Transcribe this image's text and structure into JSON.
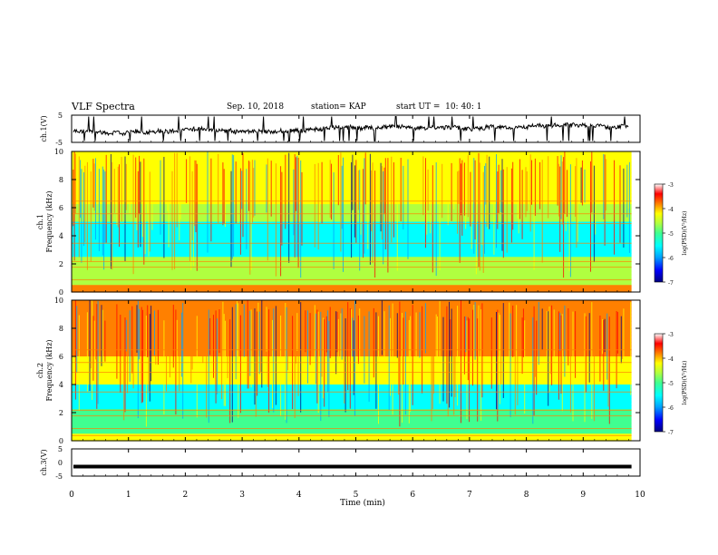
{
  "header": {
    "title": "VLF Spectra",
    "date": "Sep. 10, 2018",
    "station": "station= KAP",
    "start": "start UT =  10: 40: 1"
  },
  "colors": {
    "spectrogram_scale": [
      "#00007f",
      "#0000ff",
      "#00a0ff",
      "#00ffff",
      "#40ff90",
      "#b0ff40",
      "#ffff00",
      "#ff8000",
      "#ff0000",
      "#ffffff"
    ]
  },
  "chart_data": [
    {
      "type": "line",
      "id": "ch1-waveform",
      "ylabel": "ch.1(V)",
      "ylim": [
        -5,
        5
      ],
      "yticks": [
        "5",
        "-5"
      ],
      "xlim": [
        0,
        10
      ],
      "series": [
        {
          "values_summary": "noisy waveform around -1 V, spikes to about +5 V and -5 V"
        }
      ]
    },
    {
      "type": "heatmap",
      "id": "ch1-spectrogram",
      "ylabel": "ch.1\nFrequency (kHz)",
      "ylim": [
        0,
        10
      ],
      "yticks": [
        "0",
        "2",
        "4",
        "6",
        "8",
        "10"
      ],
      "xlim": [
        0,
        10
      ],
      "colorbar": {
        "label": "log(PSD)(V²/Hz)",
        "ticks": [
          "-3",
          "-4",
          "-5",
          "-6",
          "-7"
        ],
        "range": [
          -7,
          -3
        ]
      }
    },
    {
      "type": "heatmap",
      "id": "ch2-spectrogram",
      "ylabel": "ch.2\nFrequency (kHz)",
      "ylim": [
        0,
        10
      ],
      "yticks": [
        "0",
        "2",
        "4",
        "6",
        "8",
        "10"
      ],
      "xlim": [
        0,
        10
      ],
      "colorbar": {
        "label": "log(PSD)(V²/Hz)",
        "ticks": [
          "-3",
          "-4",
          "-5",
          "-6",
          "-7"
        ],
        "range": [
          -7,
          -3
        ]
      }
    },
    {
      "type": "line",
      "id": "ch3-waveform",
      "ylabel": "ch.3(V)",
      "ylim": [
        -5,
        5
      ],
      "yticks": [
        "5",
        "0",
        "-5"
      ],
      "xlim": [
        0,
        10
      ],
      "series": [
        {
          "values_summary": "flat line at about -1.5 V"
        }
      ]
    }
  ],
  "xaxis": {
    "label": "Time (min)",
    "ticks": [
      "0",
      "1",
      "2",
      "3",
      "4",
      "5",
      "6",
      "7",
      "8",
      "9",
      "10"
    ]
  }
}
